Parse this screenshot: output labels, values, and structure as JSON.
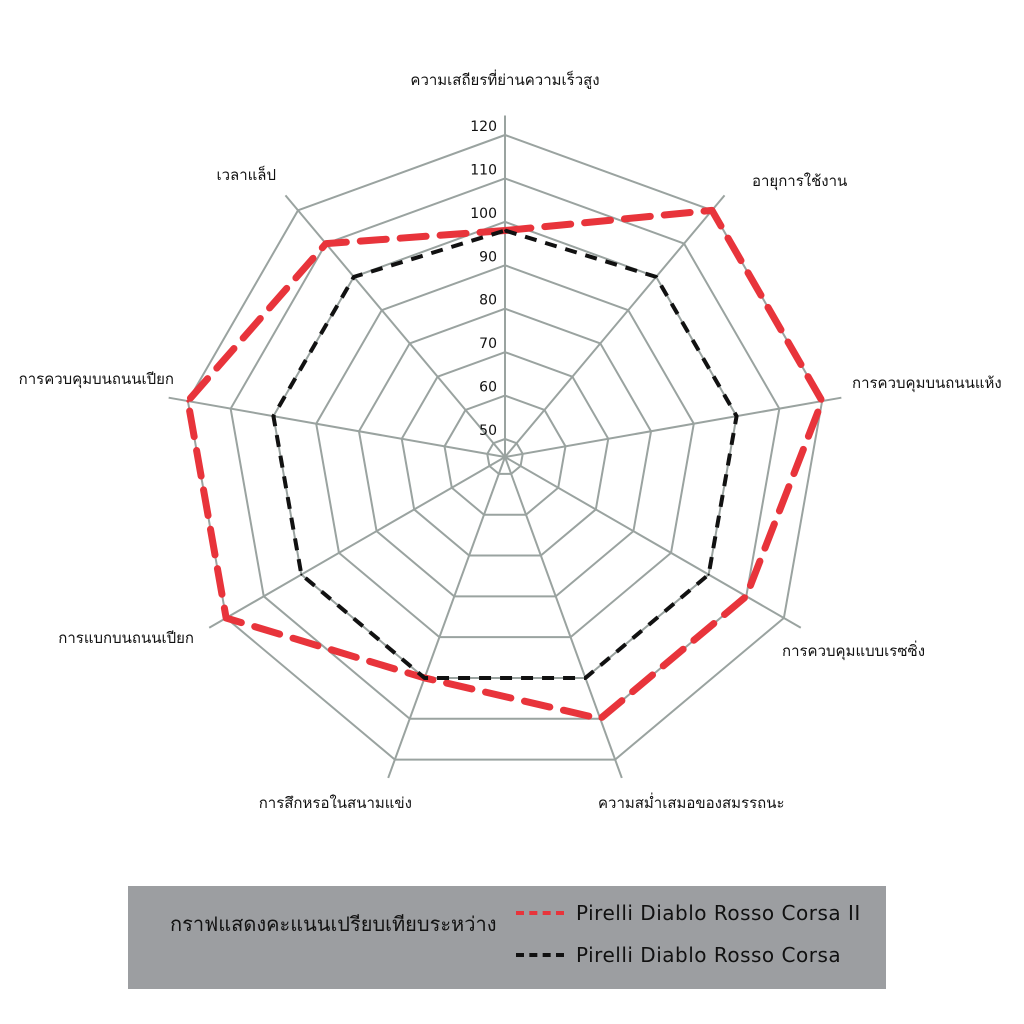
{
  "chart_data": {
    "type": "radar",
    "categories": [
      "ความเสถียรที่ย่านความเร็วสูง",
      "อายุการใช้งาน",
      "การควบคุมบนถนนแห้ง",
      "การควบคุมแบบเรซซิ่ง",
      "ความสม่ำเสมอของสมรรถนะ",
      "การสึกหรอในสนามแข่ง",
      "การแบกบนถนนเปียก",
      "การควบคุมบนถนนเปียก",
      "เวลาแล็ป"
    ],
    "r_ticks": [
      50,
      60,
      70,
      80,
      90,
      100,
      110,
      120
    ],
    "rlim": [
      50,
      120
    ],
    "series": [
      {
        "name": "Pirelli Diablo Rosso Corsa II",
        "color": "#e8343b",
        "values": [
          98,
          120,
          120,
          110,
          110,
          100,
          120,
          120,
          110
        ]
      },
      {
        "name": "Pirelli Diablo Rosso Corsa",
        "color": "#111111",
        "values": [
          98,
          100,
          100,
          100,
          100,
          100,
          100,
          100,
          100
        ]
      }
    ]
  },
  "legend": {
    "title": "กราฟแสดงคะแนนเปรียบเทียบระหว่าง"
  },
  "colors": {
    "grid": "#9aa3a0",
    "legend_bg": "#9c9ea1"
  }
}
